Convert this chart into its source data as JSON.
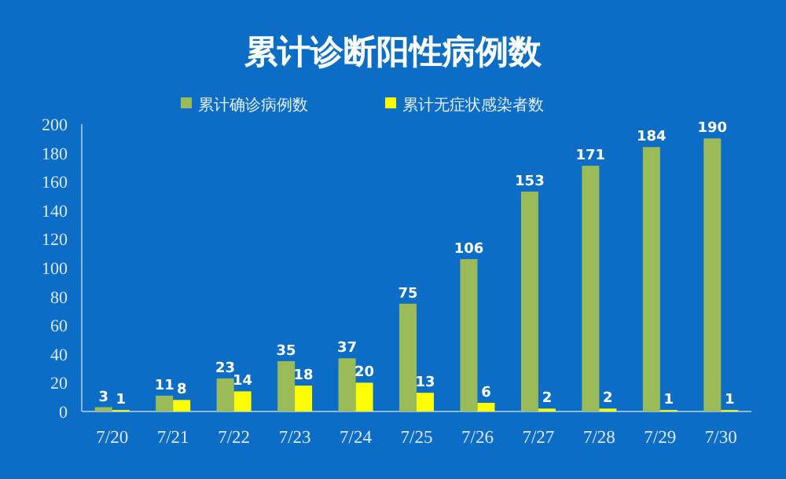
{
  "chart_data": {
    "type": "bar",
    "title": "累计诊断阳性病例数",
    "categories": [
      "7/20",
      "7/21",
      "7/22",
      "7/23",
      "7/24",
      "7/25",
      "7/26",
      "7/27",
      "7/28",
      "7/29",
      "7/30"
    ],
    "series": [
      {
        "name": "累计确诊病例数",
        "color": "#9bbb59",
        "values": [
          3,
          11,
          23,
          35,
          37,
          75,
          106,
          153,
          171,
          184,
          190
        ]
      },
      {
        "name": "累计无症状感染者数",
        "color": "#ffff00",
        "values": [
          1,
          8,
          14,
          18,
          20,
          13,
          6,
          2,
          2,
          1,
          1
        ]
      }
    ],
    "ylim": [
      0,
      200
    ],
    "yticks": [
      0,
      20,
      40,
      60,
      80,
      100,
      120,
      140,
      160,
      180,
      200
    ],
    "data_labels": true,
    "legend": "top",
    "grid": false
  }
}
